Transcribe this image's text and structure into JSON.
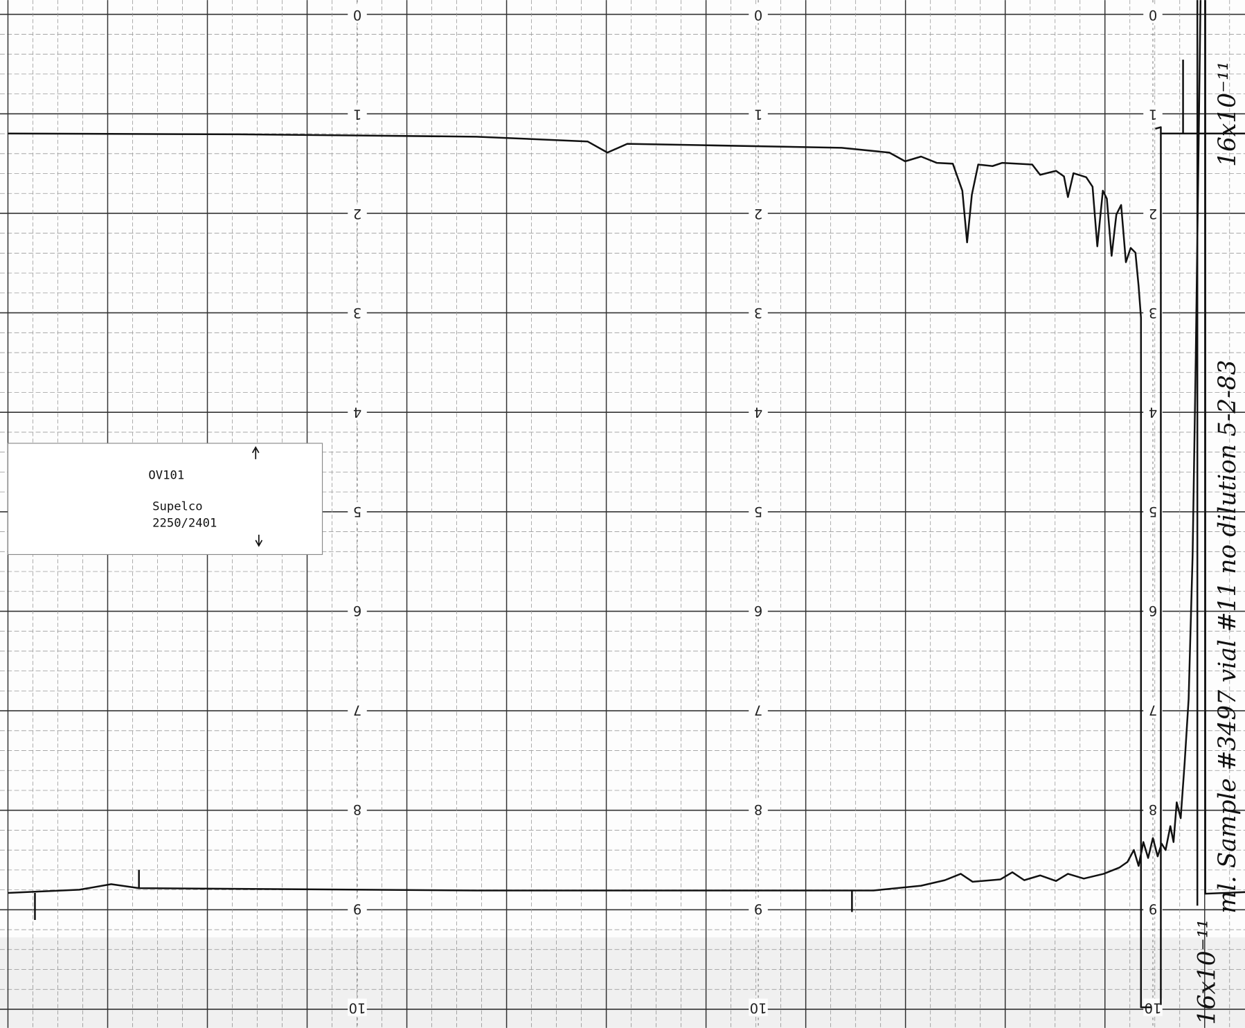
{
  "scale_labels": [
    "0",
    "1",
    "2",
    "3",
    "4",
    "5",
    "6",
    "7",
    "8",
    "9",
    "10"
  ],
  "label_box": {
    "phase": "OV101",
    "column_maker": "Supelco",
    "column_id": "2250/2401"
  },
  "handwriting": {
    "sample_note": "ml. Sample #3497 vial #11 no dilution 5-2-83",
    "upper_attenuation": "16x10⁻¹¹",
    "lower_attenuation": "16x10⁻¹¹"
  }
}
